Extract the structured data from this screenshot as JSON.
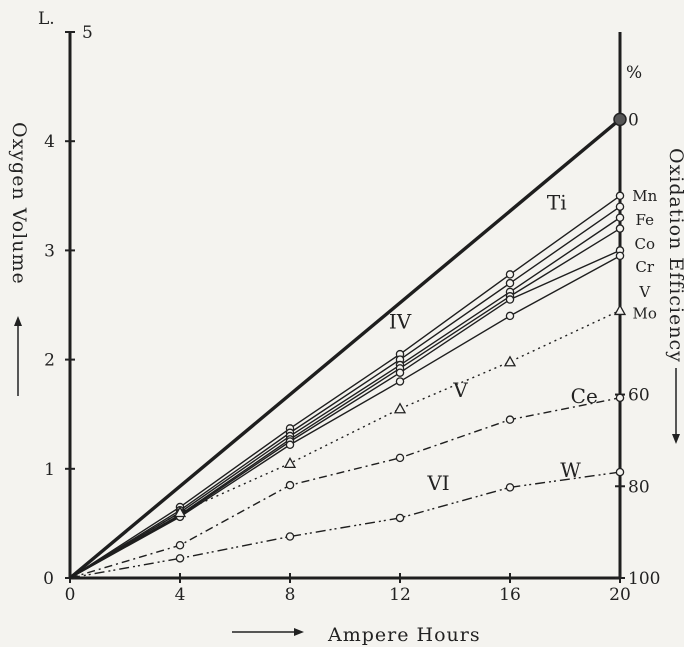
{
  "chart_data": {
    "type": "line",
    "xlabel": "Ampere Hours",
    "ylabel": "Oxygen Volume",
    "ylabel_right": "Oxidation Efficiency",
    "corner_label": "L.",
    "right_unit": "%",
    "x_ticks": [
      "0",
      "4",
      "8",
      "12",
      "16",
      "20"
    ],
    "y_ticks": [
      "0",
      "1",
      "2",
      "3",
      "4",
      "5"
    ],
    "right_ticks": [
      "0",
      "60",
      "80",
      "100"
    ],
    "xlim": [
      0,
      20
    ],
    "ylim": [
      0,
      5
    ],
    "right_axis": {
      "value_at_y_0": 100,
      "value_at_y_max": 0,
      "y_max": 4.2
    },
    "grid": false,
    "group_labels": [
      {
        "text": "IV",
        "x": 12,
        "y": 2.35
      },
      {
        "text": "V",
        "x": 14.2,
        "y": 1.72
      },
      {
        "text": "VI",
        "x": 13.4,
        "y": 0.87
      }
    ],
    "series": [
      {
        "name": "",
        "style": "thick",
        "x": [
          0,
          20
        ],
        "y": [
          0,
          4.2
        ]
      },
      {
        "name": "Ti",
        "label_x": 17.7,
        "label_y": 3.42,
        "style": "solid",
        "x": [
          0,
          4,
          8,
          12,
          16,
          20
        ],
        "y": [
          0,
          0.65,
          1.37,
          2.05,
          2.78,
          3.5
        ]
      },
      {
        "name": "Mn",
        "label_x": 20.9,
        "label_y": 3.5,
        "style": "solid",
        "x": [
          0,
          4,
          8,
          12,
          16,
          20
        ],
        "y": [
          0,
          0.62,
          1.33,
          2.0,
          2.7,
          3.4
        ]
      },
      {
        "name": "Fe",
        "label_x": 20.9,
        "label_y": 3.28,
        "style": "solid",
        "x": [
          0,
          4,
          8,
          12,
          16,
          20
        ],
        "y": [
          0,
          0.6,
          1.3,
          1.95,
          2.62,
          3.3
        ]
      },
      {
        "name": "Co",
        "label_x": 20.9,
        "label_y": 3.06,
        "style": "solid",
        "x": [
          0,
          4,
          8,
          12,
          16,
          20
        ],
        "y": [
          0,
          0.58,
          1.27,
          1.92,
          2.58,
          3.2
        ]
      },
      {
        "name": "Cr",
        "label_x": 20.9,
        "label_y": 2.85,
        "style": "solid",
        "x": [
          0,
          4,
          8,
          12,
          16,
          20
        ],
        "y": [
          0,
          0.57,
          1.25,
          1.88,
          2.55,
          3.0
        ]
      },
      {
        "name": "V",
        "label_x": 20.9,
        "label_y": 2.62,
        "style": "solid",
        "x": [
          0,
          4,
          8,
          12,
          16,
          20
        ],
        "y": [
          0,
          0.56,
          1.22,
          1.8,
          2.4,
          2.95
        ]
      },
      {
        "name": "Mo",
        "label_x": 20.9,
        "label_y": 2.42,
        "style": "dotted",
        "marker": "triangle",
        "x": [
          0,
          4,
          8,
          12,
          16,
          20
        ],
        "y": [
          0,
          0.6,
          1.05,
          1.55,
          1.98,
          2.45
        ]
      },
      {
        "name": "Ce",
        "label_x": 18.7,
        "label_y": 1.65,
        "style": "dashdot",
        "x": [
          0,
          4,
          8,
          12,
          16,
          20
        ],
        "y": [
          0,
          0.3,
          0.85,
          1.1,
          1.45,
          1.65
        ]
      },
      {
        "name": "W",
        "label_x": 18.2,
        "label_y": 0.97,
        "style": "dashdotdot",
        "x": [
          0,
          4,
          8,
          12,
          16,
          20
        ],
        "y": [
          0,
          0.18,
          0.38,
          0.55,
          0.83,
          0.97
        ]
      }
    ]
  }
}
